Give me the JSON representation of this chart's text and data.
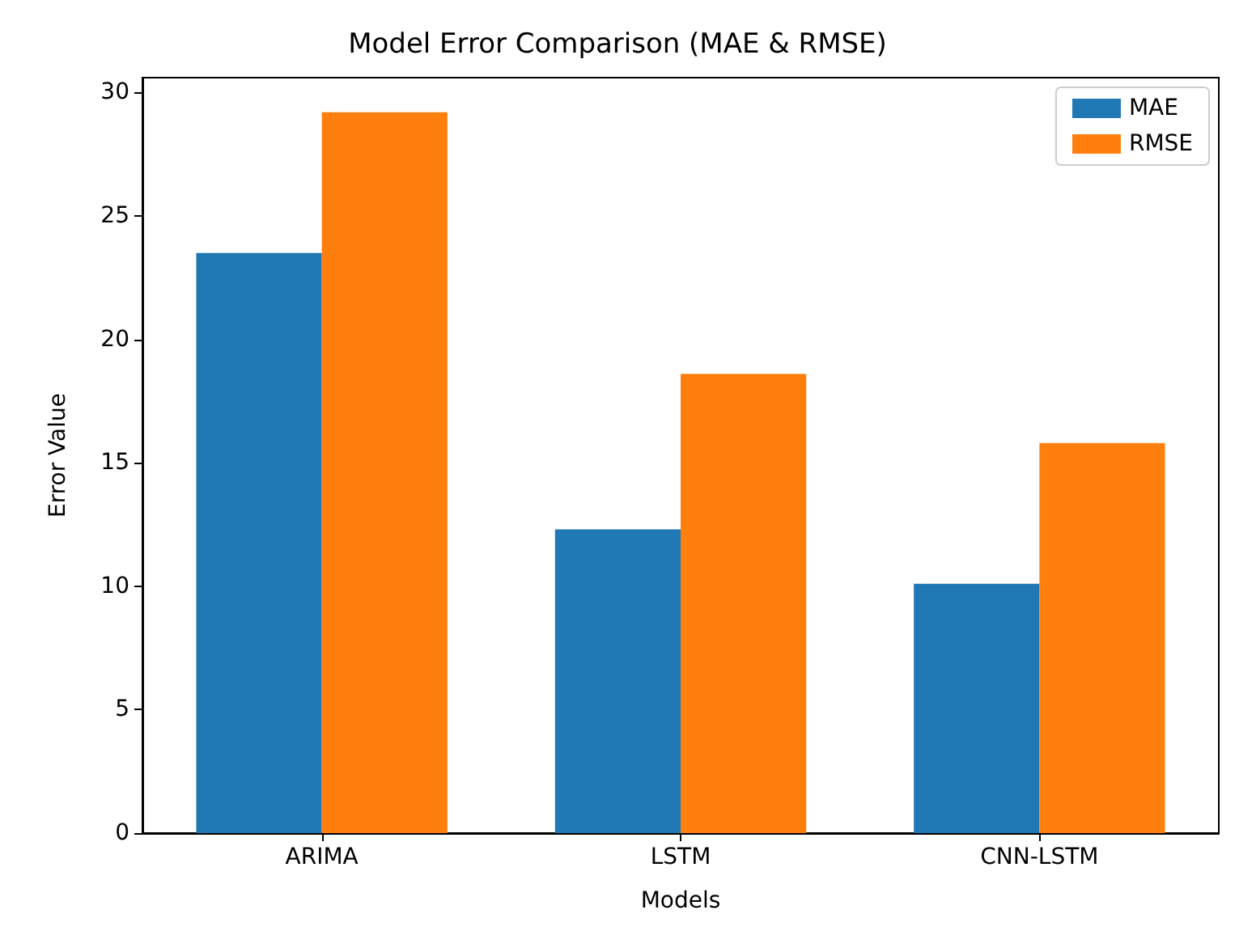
{
  "chart_data": {
    "type": "bar",
    "title": "Model Error Comparison (MAE & RMSE)",
    "xlabel": "Models",
    "ylabel": "Error Value",
    "categories": [
      "ARIMA",
      "LSTM",
      "CNN-LSTM"
    ],
    "series": [
      {
        "name": "MAE",
        "color": "#1f77b4",
        "values": [
          23.5,
          12.3,
          10.1
        ]
      },
      {
        "name": "RMSE",
        "color": "#ff7f0e",
        "values": [
          29.2,
          18.6,
          15.8
        ]
      }
    ],
    "ylim": [
      0,
      30.6
    ],
    "yticks": [
      0,
      5,
      10,
      15,
      20,
      25,
      30
    ],
    "legend": "top right",
    "grid": false
  }
}
